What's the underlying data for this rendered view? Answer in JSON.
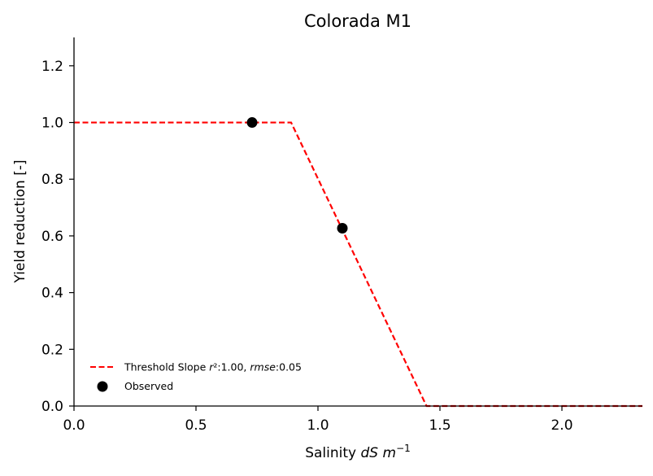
{
  "chart_data": {
    "type": "line",
    "title": "Colorada M1",
    "xlabel": "Salinity dS m⁻¹",
    "xlabel_parts": {
      "prefix": "Salinity ",
      "italic": "dS m",
      "sup": "−1"
    },
    "ylabel": "Yield reduction [-]",
    "xlim": [
      0.0,
      2.33
    ],
    "ylim": [
      0.0,
      1.3
    ],
    "xticks": [
      0.0,
      0.5,
      1.0,
      1.5,
      2.0
    ],
    "xtick_labels": [
      "0.0",
      "0.5",
      "1.0",
      "1.5",
      "2.0"
    ],
    "yticks": [
      0.0,
      0.2,
      0.4,
      0.6,
      0.8,
      1.0,
      1.2
    ],
    "ytick_labels": [
      "0.0",
      "0.2",
      "0.4",
      "0.6",
      "0.8",
      "1.0",
      "1.2"
    ],
    "grid": false,
    "legend_position": "lower-left",
    "series": [
      {
        "name": "Threshold Slope r²:1.00, rmse:0.05",
        "legend_parts": {
          "a": "Threshold Slope ",
          "r": "r",
          "b": "²:1.00, ",
          "rmse": "rmse",
          "c": ":0.05"
        },
        "kind": "line",
        "style": "dashed",
        "color": "#ff0000",
        "x": [
          0.0,
          0.89,
          1.445,
          2.33
        ],
        "y": [
          1.0,
          1.0,
          0.0,
          0.0
        ]
      },
      {
        "name": "Observed",
        "kind": "scatter",
        "color": "#000000",
        "x": [
          0.73,
          1.1
        ],
        "y": [
          1.0,
          0.627
        ]
      }
    ]
  }
}
